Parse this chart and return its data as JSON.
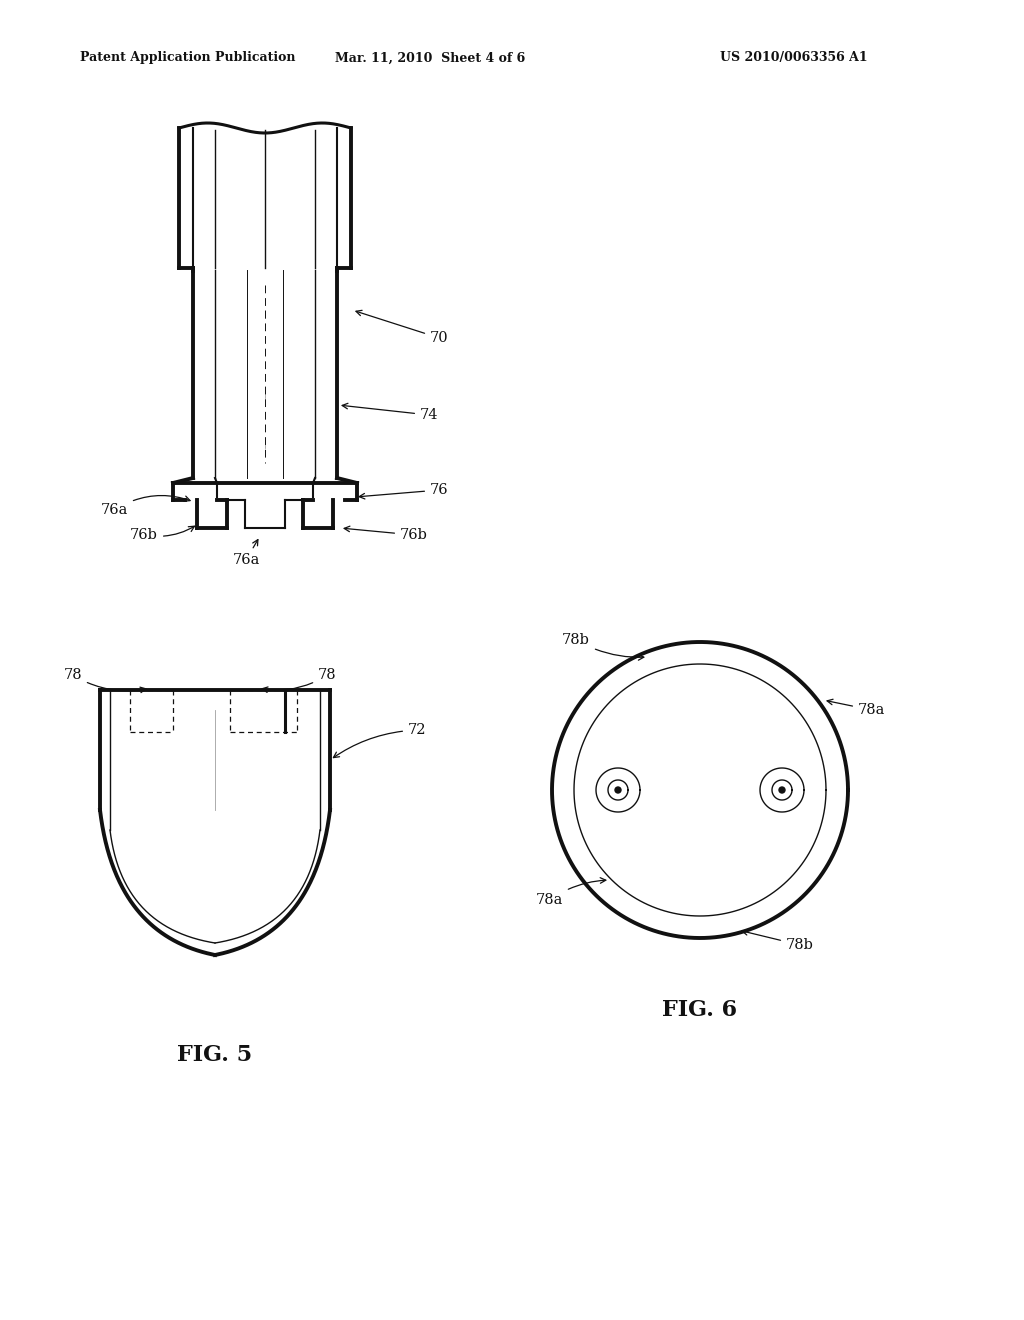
{
  "bg_color": "#ffffff",
  "header_left": "Patent Application Publication",
  "header_mid": "Mar. 11, 2010  Sheet 4 of 6",
  "header_right": "US 2010/0063356 A1",
  "fig5_label": "FIG. 5",
  "fig6_label": "FIG. 6",
  "line_color": "#111111",
  "label_fontsize": 10.5
}
